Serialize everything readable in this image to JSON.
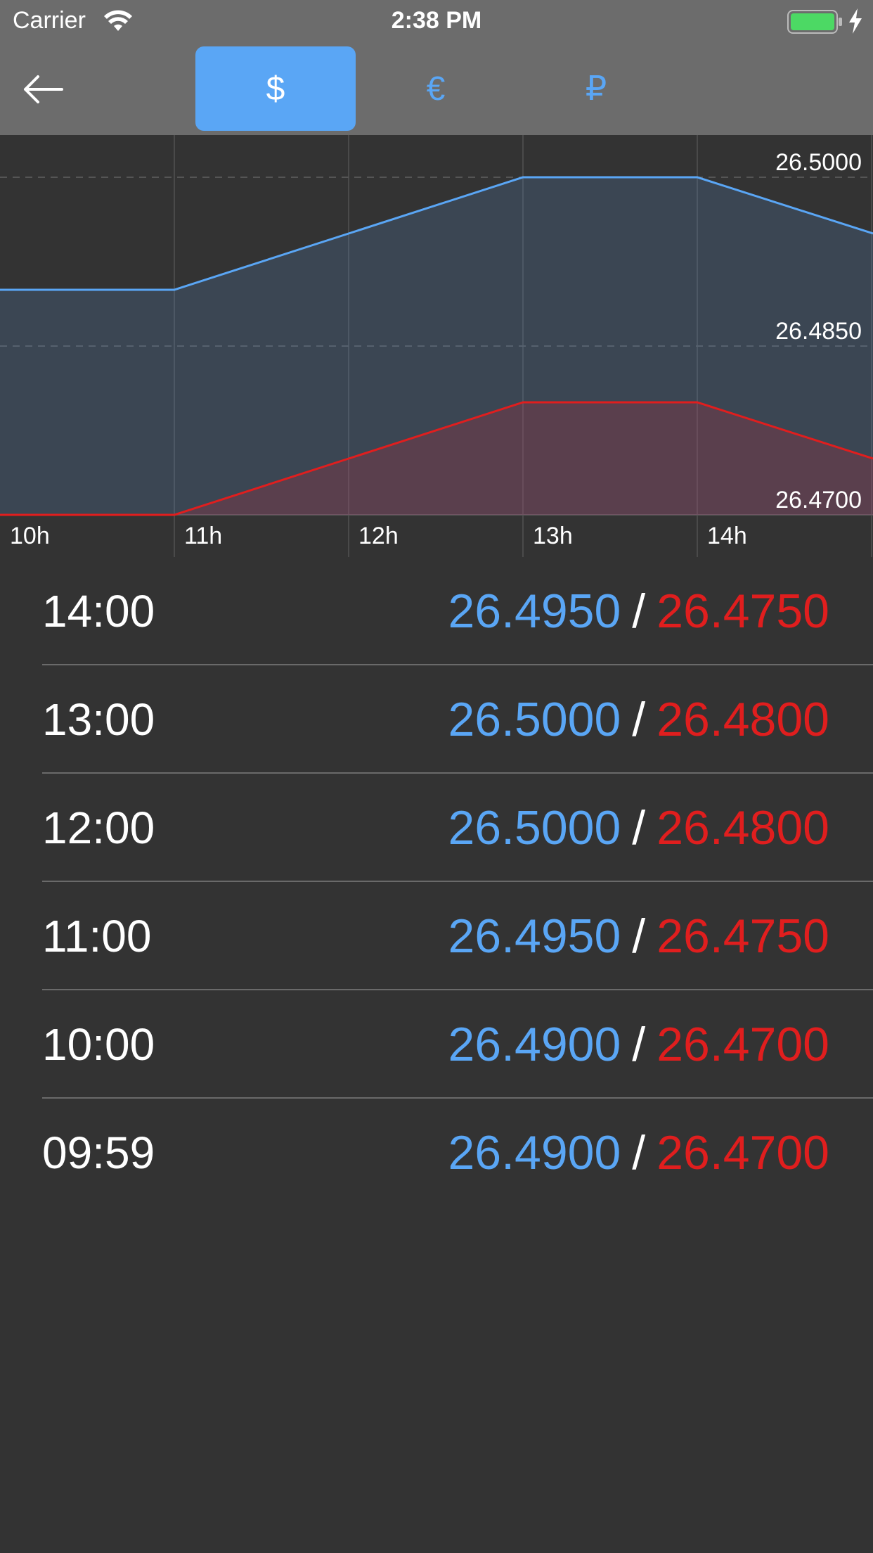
{
  "status_bar": {
    "carrier": "Carrier",
    "time": "2:38 PM"
  },
  "currency_tabs": [
    {
      "symbol": "$",
      "selected": true
    },
    {
      "symbol": "€",
      "selected": false
    },
    {
      "symbol": "₽",
      "selected": false
    }
  ],
  "colors": {
    "buy": "#5aa6f5",
    "sell": "#e01e1e",
    "background": "#333333",
    "header": "#6c6c6c"
  },
  "chart_data": {
    "type": "area",
    "x": [
      "10h",
      "11h",
      "12h",
      "13h",
      "14h",
      ""
    ],
    "series": [
      {
        "values": [
          26.49,
          26.49,
          26.495,
          26.5,
          26.5,
          26.495
        ],
        "color": "#5aa6f5"
      },
      {
        "values": [
          26.47,
          26.47,
          26.475,
          26.48,
          26.48,
          26.475
        ],
        "color": "#e01e1e"
      }
    ],
    "y_ticks": [
      "26.5000",
      "26.4850",
      "26.4700"
    ],
    "ylim": [
      26.47,
      26.5
    ],
    "grid": true
  },
  "rates": [
    {
      "time": "14:00",
      "buy": "26.4950",
      "sell": "26.4750"
    },
    {
      "time": "13:00",
      "buy": "26.5000",
      "sell": "26.4800"
    },
    {
      "time": "12:00",
      "buy": "26.5000",
      "sell": "26.4800"
    },
    {
      "time": "11:00",
      "buy": "26.4950",
      "sell": "26.4750"
    },
    {
      "time": "10:00",
      "buy": "26.4900",
      "sell": "26.4700"
    },
    {
      "time": "09:59",
      "buy": "26.4900",
      "sell": "26.4700"
    }
  ],
  "separator": "/"
}
